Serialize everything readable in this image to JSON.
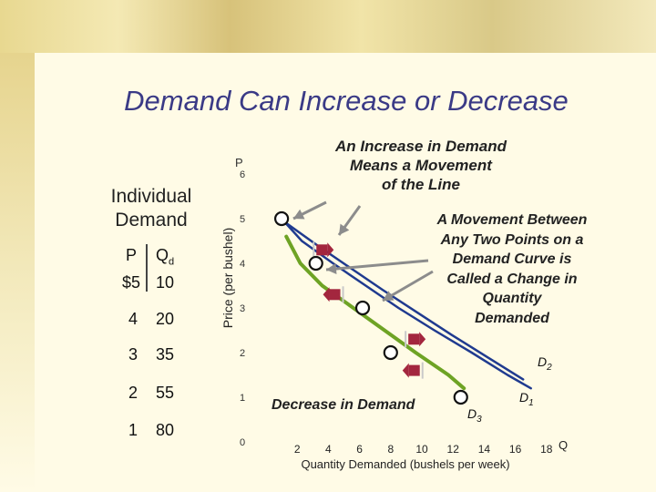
{
  "slide_title": "Demand Can Increase or Decrease",
  "individual_demand": {
    "title_line1": "Individual",
    "title_line2": "Demand",
    "header_p": "P",
    "header_q": "Q",
    "header_q_sub": "d",
    "rows": [
      {
        "p": "$5",
        "q": "10"
      },
      {
        "p": "4",
        "q": "20"
      },
      {
        "p": "3",
        "q": "35"
      },
      {
        "p": "2",
        "q": "55"
      },
      {
        "p": "1",
        "q": "80"
      }
    ]
  },
  "annotations": {
    "movement_of_line": [
      "An Increase in Demand",
      "Means a Movement",
      "of the Line"
    ],
    "movement_between": [
      "A Movement Between",
      "Any Two Points on a",
      "Demand Curve is",
      "Called a Change in",
      "Quantity",
      "Demanded"
    ],
    "decrease": "Decrease in Demand"
  },
  "colors": {
    "title": "#3a3a86",
    "curve_blue": "#1f3a8f",
    "curve_green": "#6ea324",
    "marker": "#a3263e",
    "annotation_arrow": "#8c8c8c"
  },
  "chart_data": {
    "type": "line",
    "title": "",
    "xlabel": "Quantity Demanded (bushels per week)",
    "ylabel": "Price (per bushel)",
    "x_axis_letter": "Q",
    "y_axis_letter": "P",
    "x_ticks": [
      "2",
      "4",
      "6",
      "8",
      "10",
      "12",
      "14",
      "16",
      "18"
    ],
    "y_ticks": [
      "0",
      "1",
      "2",
      "3",
      "4",
      "5",
      "6"
    ],
    "xlim": [
      0,
      18
    ],
    "ylim": [
      0,
      6
    ],
    "series": [
      {
        "name": "D1",
        "label": "D",
        "sub": "1",
        "color": "#1f3a8f",
        "points": [
          [
            1.0,
            5.0
          ],
          [
            2.3,
            4.5
          ],
          [
            4.3,
            4.0
          ],
          [
            6.4,
            3.5
          ],
          [
            8.5,
            3.0
          ],
          [
            10.8,
            2.5
          ],
          [
            13.2,
            2.0
          ],
          [
            15.5,
            1.5
          ],
          [
            17.0,
            1.2
          ]
        ]
      },
      {
        "name": "D2",
        "label": "D",
        "sub": "2",
        "color": "#1f3a8f",
        "points": [
          [
            1.3,
            4.9
          ],
          [
            3.3,
            4.4
          ],
          [
            5.4,
            3.9
          ],
          [
            7.5,
            3.4
          ],
          [
            9.7,
            2.9
          ],
          [
            11.9,
            2.4
          ],
          [
            14.2,
            1.9
          ],
          [
            16.5,
            1.4
          ]
        ]
      },
      {
        "name": "D3",
        "label": "D",
        "sub": "3",
        "color": "#6ea324",
        "points": [
          [
            1.3,
            4.6
          ],
          [
            2.2,
            4.0
          ],
          [
            3.6,
            3.5
          ],
          [
            5.6,
            3.0
          ],
          [
            7.6,
            2.5
          ],
          [
            9.6,
            2.0
          ],
          [
            11.7,
            1.5
          ],
          [
            12.7,
            1.2
          ]
        ]
      }
    ],
    "demand_points": [
      {
        "x": 1.0,
        "y": 5.0
      },
      {
        "x": 3.2,
        "y": 4.0
      },
      {
        "x": 6.2,
        "y": 3.0
      },
      {
        "x": 8.0,
        "y": 2.0
      },
      {
        "x": 12.5,
        "y": 1.0
      }
    ],
    "shift_markers": [
      {
        "x": 3.7,
        "y": 4.3,
        "dir": "right"
      },
      {
        "x": 4.3,
        "y": 3.3,
        "dir": "left"
      },
      {
        "x": 9.6,
        "y": 2.3,
        "dir": "right"
      },
      {
        "x": 9.4,
        "y": 1.6,
        "dir": "left"
      }
    ]
  }
}
